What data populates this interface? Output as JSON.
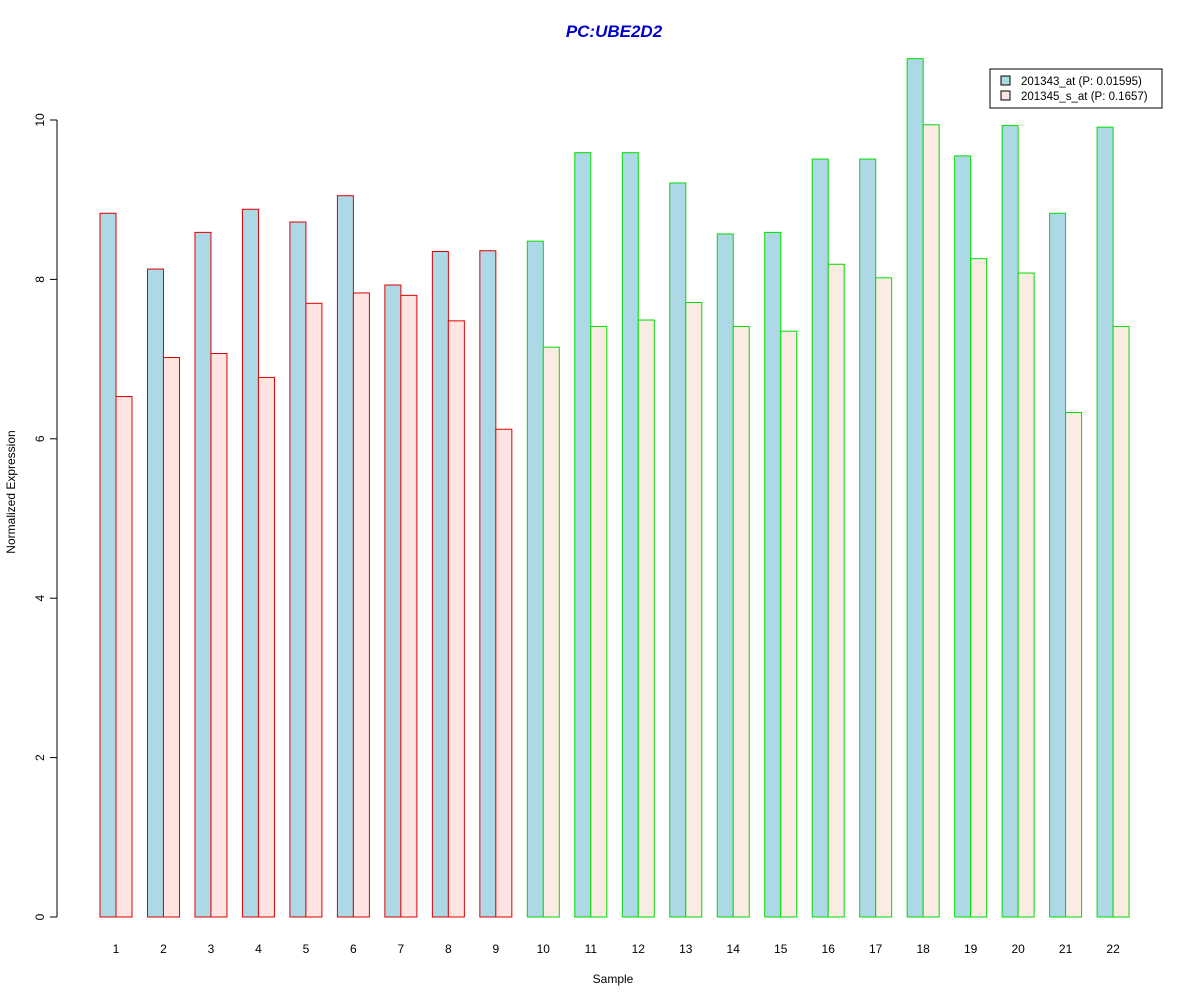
{
  "chart_data": {
    "type": "bar",
    "title": "PC:UBE2D2",
    "xlabel": "Sample",
    "ylabel": "Normalized Expression",
    "ylim": [
      0,
      10.8
    ],
    "yticks": [
      0,
      2,
      4,
      6,
      8,
      10
    ],
    "categories": [
      "1",
      "2",
      "3",
      "4",
      "5",
      "6",
      "7",
      "8",
      "9",
      "10",
      "11",
      "12",
      "13",
      "14",
      "15",
      "16",
      "17",
      "18",
      "19",
      "20",
      "21",
      "22"
    ],
    "series": [
      {
        "name": "201343_at (P: 0.01595)",
        "fill": "#add8e6",
        "values": [
          8.83,
          8.13,
          8.59,
          8.88,
          8.72,
          9.05,
          7.93,
          8.35,
          8.36,
          8.48,
          9.59,
          9.59,
          9.21,
          8.57,
          8.59,
          9.51,
          9.51,
          10.77,
          9.55,
          9.93,
          8.83,
          9.91
        ]
      },
      {
        "name": "201345_s_at (P: 0.1657)",
        "fill_group_red": "#ffe4e1",
        "fill_group_green": "#faebe3",
        "values": [
          6.53,
          7.02,
          7.07,
          6.77,
          7.7,
          7.83,
          7.8,
          7.48,
          6.12,
          7.15,
          7.41,
          7.49,
          7.71,
          7.41,
          7.35,
          8.19,
          8.02,
          9.94,
          8.26,
          8.08,
          6.33,
          7.41
        ]
      }
    ],
    "sample_groups": [
      "red",
      "red",
      "red",
      "red",
      "red",
      "red",
      "red",
      "red",
      "red",
      "green",
      "green",
      "green",
      "green",
      "green",
      "green",
      "green",
      "green",
      "green",
      "green",
      "green",
      "green",
      "green"
    ],
    "group_border_colors": {
      "red": "#dd0000",
      "green": "#00dd00"
    },
    "title_color": "#0000cc",
    "legend_position": "top-right",
    "grid": false
  }
}
